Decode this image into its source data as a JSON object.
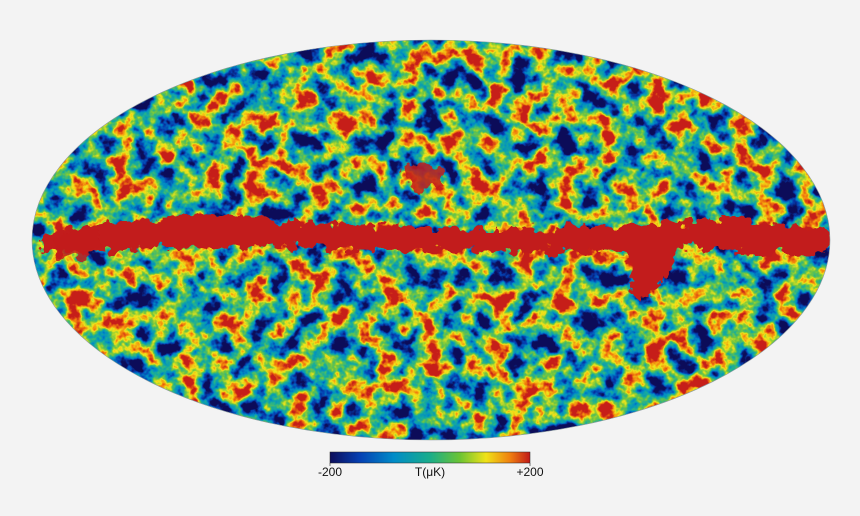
{
  "colorbar": {
    "title": "T(μK)",
    "ticks": [
      -200,
      {
        "value": 200,
        "label": "+200"
      }
    ]
  }
}
